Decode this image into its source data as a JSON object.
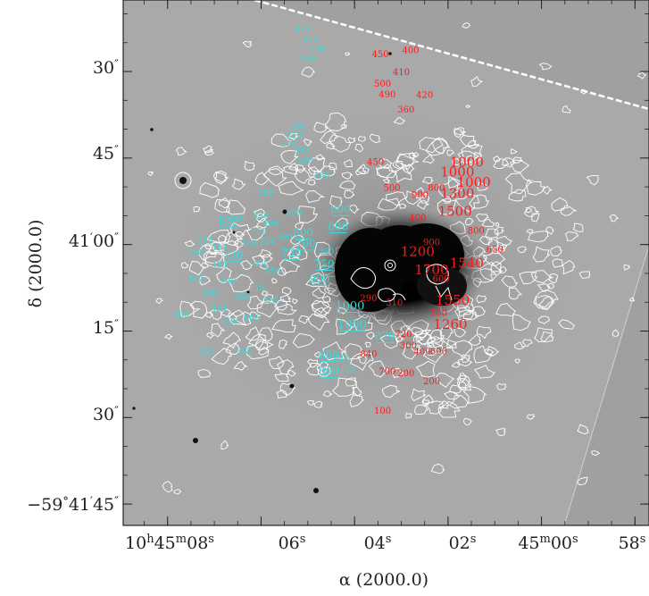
{
  "chart_data": {
    "type": "image",
    "xlabel": "α (2000.0)",
    "ylabel": "δ (2000.0)",
    "x_ticks": [
      {
        "ra_s": 8,
        "label_main": "10",
        "sup1": "h",
        "mid": "45",
        "sup2": "m",
        "sec": "08",
        "sup3": "s"
      },
      {
        "ra_s": 6,
        "label": "06",
        "sup": "s"
      },
      {
        "ra_s": 4,
        "label": "04",
        "sup": "s"
      },
      {
        "ra_s": 2,
        "label": "02",
        "sup": "s"
      },
      {
        "ra_s": 0,
        "label_main": "45",
        "sup1": "m",
        "sec": "00",
        "sup3": "s"
      },
      {
        "ra_s": -2,
        "label": "58",
        "sup": "s"
      }
    ],
    "y_ticks": [
      {
        "dec_arcsec": 30,
        "label": "30",
        "sup": "″"
      },
      {
        "dec_arcsec": 45,
        "label": "45",
        "sup": "″"
      },
      {
        "dec_arcsec": 60,
        "label_main": "41",
        "sup1": "′",
        "sec": "00",
        "sup2": "″"
      },
      {
        "dec_arcsec": 75,
        "label": "15",
        "sup": "″"
      },
      {
        "dec_arcsec": 90,
        "label": "30",
        "sup": "″"
      },
      {
        "dec_arcsec": 105,
        "label_main": "−59",
        "sup0": "°",
        "mid": "41",
        "sup1": "′",
        "sec": "45",
        "sup2": "″"
      }
    ],
    "cyan_labels": [
      {
        "t": "420",
        "ra": 5.1,
        "dec": 23.2
      },
      {
        "t": "470",
        "ra": 4.95,
        "dec": 25.0
      },
      {
        "t": "540",
        "ra": 4.75,
        "dec": 26.6
      },
      {
        "t": "530",
        "ra": 5.0,
        "dec": 28.2
      },
      {
        "t": "330",
        "ra": 5.2,
        "dec": 40.0
      },
      {
        "t": "310",
        "ra": 5.3,
        "dec": 41.5
      },
      {
        "t": "320",
        "ra": 5.4,
        "dec": 43.0
      },
      {
        "t": "390",
        "ra": 5.15,
        "dec": 44.2
      },
      {
        "t": "200",
        "ra": 5.05,
        "dec": 45.9
      },
      {
        "t": "180",
        "ra": 4.7,
        "dec": 48.5
      },
      {
        "t": "180",
        "ra": 5.9,
        "dec": 51.5
      },
      {
        "t": "430",
        "ra": 6.0,
        "dec": 55.5
      },
      {
        "t": "600",
        "ra": 5.3,
        "dec": 55.0
      },
      {
        "t": "620",
        "ra": 6.5,
        "dec": 56.0
      },
      {
        "t": "800",
        "ra": 6.7,
        "dec": 56.5
      },
      {
        "t": "490",
        "ra": 5.8,
        "dec": 56.8
      },
      {
        "t": "800",
        "ra": 4.3,
        "dec": 54.5
      },
      {
        "t": "800",
        "ra": 4.35,
        "dec": 57.5
      },
      {
        "t": "800",
        "ra": 5.1,
        "dec": 58.5
      },
      {
        "t": "710",
        "ra": 6.05,
        "dec": 58.2
      },
      {
        "t": "580",
        "ra": 5.5,
        "dec": 59.2
      },
      {
        "t": "550",
        "ra": 5.85,
        "dec": 60.0
      },
      {
        "t": "500",
        "ra": 6.25,
        "dec": 60.3
      },
      {
        "t": "700",
        "ra": 5.05,
        "dec": 60.5
      },
      {
        "t": "380",
        "ra": 7.2,
        "dec": 59.8
      },
      {
        "t": "420",
        "ra": 6.9,
        "dec": 61.0
      },
      {
        "t": "730",
        "ra": 5.35,
        "dec": 62.1
      },
      {
        "t": "360",
        "ra": 4.6,
        "dec": 61.7
      },
      {
        "t": "730",
        "ra": 6.6,
        "dec": 62.5
      },
      {
        "t": "580",
        "ra": 7.4,
        "dec": 61.8
      },
      {
        "t": "650",
        "ra": 6.0,
        "dec": 63.8
      },
      {
        "t": "750",
        "ra": 4.65,
        "dec": 64.0
      },
      {
        "t": "490",
        "ra": 6.9,
        "dec": 64.1
      },
      {
        "t": "580",
        "ra": 5.75,
        "dec": 65.1
      },
      {
        "t": "900",
        "ra": 4.75,
        "dec": 66.6
      },
      {
        "t": "410",
        "ra": 7.4,
        "dec": 66.3
      },
      {
        "t": "440",
        "ra": 6.7,
        "dec": 66.8
      },
      {
        "t": "150",
        "ra": 6.1,
        "dec": 68.0
      },
      {
        "t": "480",
        "ra": 7.1,
        "dec": 68.8
      },
      {
        "t": "250",
        "ra": 6.4,
        "dec": 69.5
      },
      {
        "t": "220",
        "ra": 5.8,
        "dec": 70.2
      },
      {
        "t": "430",
        "ra": 6.9,
        "dec": 71.6
      },
      {
        "t": "1000",
        "ra": 4.1,
        "dec": 71.3
      },
      {
        "t": "400",
        "ra": 7.7,
        "dec": 72.6
      },
      {
        "t": "660",
        "ra": 6.2,
        "dec": 73.2
      },
      {
        "t": "520",
        "ra": 6.65,
        "dec": 73.8
      },
      {
        "t": "1000",
        "ra": 4.05,
        "dec": 74.5
      },
      {
        "t": "820",
        "ra": 3.35,
        "dec": 76.5
      },
      {
        "t": "520",
        "ra": 7.15,
        "dec": 79.0
      },
      {
        "t": "350",
        "ra": 6.35,
        "dec": 79.0
      },
      {
        "t": "800",
        "ra": 4.55,
        "dec": 79.8
      },
      {
        "t": "200",
        "ra": 4.25,
        "dec": 80.3
      },
      {
        "t": "900",
        "ra": 4.55,
        "dec": 82.6
      },
      {
        "t": "150",
        "ra": 4.15,
        "dec": 82.3
      }
    ],
    "underlined": [
      "700",
      "800",
      "800",
      "730",
      "750",
      "900",
      "1000",
      "1000",
      "820",
      "800",
      "900"
    ],
    "red_labels": [
      {
        "t": "400",
        "ra": 2.8,
        "dec": 26.8
      },
      {
        "t": "450",
        "ra": 3.45,
        "dec": 27.5
      },
      {
        "t": "410",
        "ra": 3.0,
        "dec": 30.6
      },
      {
        "t": "500",
        "ra": 3.4,
        "dec": 32.6
      },
      {
        "t": "490",
        "ra": 3.3,
        "dec": 34.5
      },
      {
        "t": "420",
        "ra": 2.5,
        "dec": 34.6
      },
      {
        "t": "360",
        "ra": 2.9,
        "dec": 37.1
      },
      {
        "t": "450",
        "ra": 3.55,
        "dec": 46.2
      },
      {
        "t": "500",
        "ra": 3.2,
        "dec": 50.7
      },
      {
        "t": "900",
        "ra": 2.6,
        "dec": 51.9
      },
      {
        "t": "800",
        "ra": 2.25,
        "dec": 50.7
      },
      {
        "t": "1000",
        "ra": 1.6,
        "dec": 46.5
      },
      {
        "t": "1000",
        "ra": 1.8,
        "dec": 48.2
      },
      {
        "t": "1000",
        "ra": 1.45,
        "dec": 50.0
      },
      {
        "t": "1300",
        "ra": 1.8,
        "dec": 51.9
      },
      {
        "t": "1500",
        "ra": 1.85,
        "dec": 55.0
      },
      {
        "t": "400",
        "ra": 2.65,
        "dec": 55.9
      },
      {
        "t": "800",
        "ra": 1.4,
        "dec": 58.1
      },
      {
        "t": "900",
        "ra": 2.35,
        "dec": 60.1
      },
      {
        "t": "650",
        "ra": 1.0,
        "dec": 61.4
      },
      {
        "t": "1200",
        "ra": 2.65,
        "dec": 62.0
      },
      {
        "t": "1540",
        "ra": 1.6,
        "dec": 64.0
      },
      {
        "t": "1700",
        "ra": 2.35,
        "dec": 65.2
      },
      {
        "t": "600",
        "ra": 2.15,
        "dec": 66.5
      },
      {
        "t": "290",
        "ra": 3.7,
        "dec": 69.8
      },
      {
        "t": "1550",
        "ra": 1.9,
        "dec": 70.4
      },
      {
        "t": "510",
        "ra": 3.15,
        "dec": 70.6
      },
      {
        "t": "500",
        "ra": 2.2,
        "dec": 72.4
      },
      {
        "t": "1260",
        "ra": 1.95,
        "dec": 74.6
      },
      {
        "t": "720",
        "ra": 2.95,
        "dec": 76.0
      },
      {
        "t": "300",
        "ra": 2.85,
        "dec": 78.0
      },
      {
        "t": "400",
        "ra": 2.55,
        "dec": 79.0
      },
      {
        "t": "600",
        "ra": 2.2,
        "dec": 79.0
      },
      {
        "t": "840",
        "ra": 3.7,
        "dec": 79.5
      },
      {
        "t": "700",
        "ra": 3.3,
        "dec": 82.5
      },
      {
        "t": "200",
        "ra": 2.9,
        "dec": 82.8
      },
      {
        "t": "200",
        "ra": 2.35,
        "dec": 84.2
      },
      {
        "t": "100",
        "ra": 3.4,
        "dec": 89.3
      }
    ],
    "colors": {
      "cyan_label": "#33dddd",
      "red_label": "#ff1a1a",
      "contour": "#ffffff",
      "image_bg": "#a8a8a8",
      "blank_bg": "#9f9f9f",
      "nucleus": "#050505"
    }
  }
}
